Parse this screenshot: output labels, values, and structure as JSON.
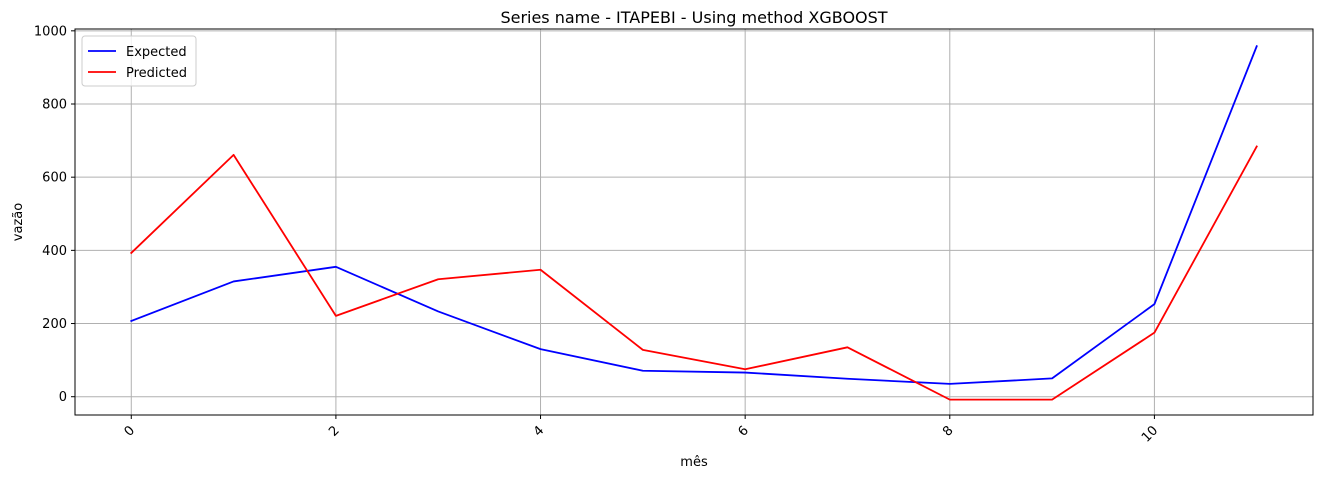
{
  "chart_data": {
    "type": "line",
    "title": "Series name - ITAPEBI - Using method XGBOOST",
    "xlabel": "mês",
    "ylabel": "vazão",
    "x": [
      0,
      1,
      2,
      3,
      4,
      5,
      6,
      7,
      8,
      9,
      10,
      11
    ],
    "xlim": [
      -0.55,
      11.55
    ],
    "ylim": [
      -50,
      1005
    ],
    "xticks": [
      0,
      2,
      4,
      6,
      8,
      10
    ],
    "yticks": [
      0,
      200,
      400,
      600,
      800,
      1000
    ],
    "xtick_rotation_deg": 45,
    "grid": true,
    "legend_position": "top-left",
    "series": [
      {
        "name": "Expected",
        "color": "#0000ff",
        "values": [
          207,
          315,
          355,
          233,
          130,
          71,
          66,
          49,
          35,
          50,
          253,
          958
        ]
      },
      {
        "name": "Predicted",
        "color": "#ff0000",
        "values": [
          393,
          661,
          221,
          321,
          347,
          128,
          75,
          135,
          -8,
          -8,
          175,
          684
        ]
      }
    ]
  }
}
